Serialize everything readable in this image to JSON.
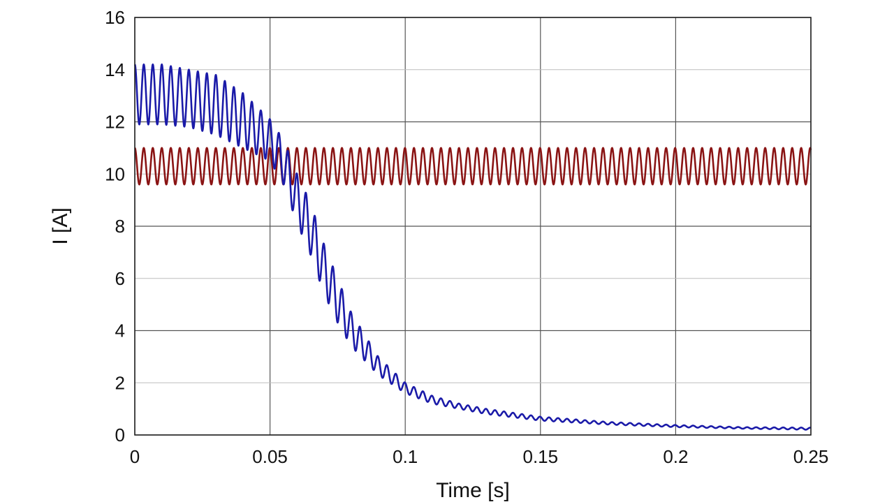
{
  "chart_data": {
    "type": "line",
    "title": "",
    "xlabel": "Time [s]",
    "ylabel": "I [A]",
    "xlim": [
      0,
      0.25
    ],
    "ylim": [
      0,
      16
    ],
    "x_ticks": [
      0,
      0.05,
      0.1,
      0.15,
      0.2,
      0.25
    ],
    "x_tick_labels": [
      "0",
      "0.05",
      "0.1",
      "0.15",
      "0.2",
      "0.25"
    ],
    "y_ticks": [
      0,
      2,
      4,
      6,
      8,
      10,
      12,
      14,
      16
    ],
    "y_tick_labels": [
      "0",
      "2",
      "4",
      "6",
      "8",
      "10",
      "12",
      "14",
      "16"
    ],
    "grid": true,
    "legend": "none",
    "series": [
      {
        "color": "#1a1aa8",
        "ripple": true,
        "ripple_period_s": 0.00333,
        "envelope": {
          "x": [
            0,
            0.01,
            0.02,
            0.03,
            0.04,
            0.05,
            0.055,
            0.06,
            0.065,
            0.07,
            0.075,
            0.08,
            0.09,
            0.1,
            0.11,
            0.12,
            0.13,
            0.15,
            0.175,
            0.2,
            0.225,
            0.25
          ],
          "upper": [
            14.2,
            14.2,
            14.0,
            13.8,
            13.1,
            12.1,
            11.3,
            10.0,
            8.9,
            7.3,
            6.0,
            4.7,
            3.0,
            2.0,
            1.5,
            1.2,
            1.0,
            0.7,
            0.5,
            0.38,
            0.3,
            0.28
          ],
          "lower": [
            11.9,
            11.9,
            11.8,
            11.5,
            11.0,
            10.5,
            9.6,
            8.1,
            6.9,
            5.4,
            4.3,
            3.4,
            2.3,
            1.6,
            1.2,
            1.0,
            0.8,
            0.55,
            0.4,
            0.3,
            0.24,
            0.2
          ]
        }
      },
      {
        "color": "#8a1414",
        "ripple": true,
        "ripple_period_s": 0.00333,
        "envelope": {
          "x": [
            0,
            0.25
          ],
          "upper": [
            11.0,
            11.0
          ],
          "lower": [
            9.6,
            9.6
          ]
        }
      }
    ]
  }
}
